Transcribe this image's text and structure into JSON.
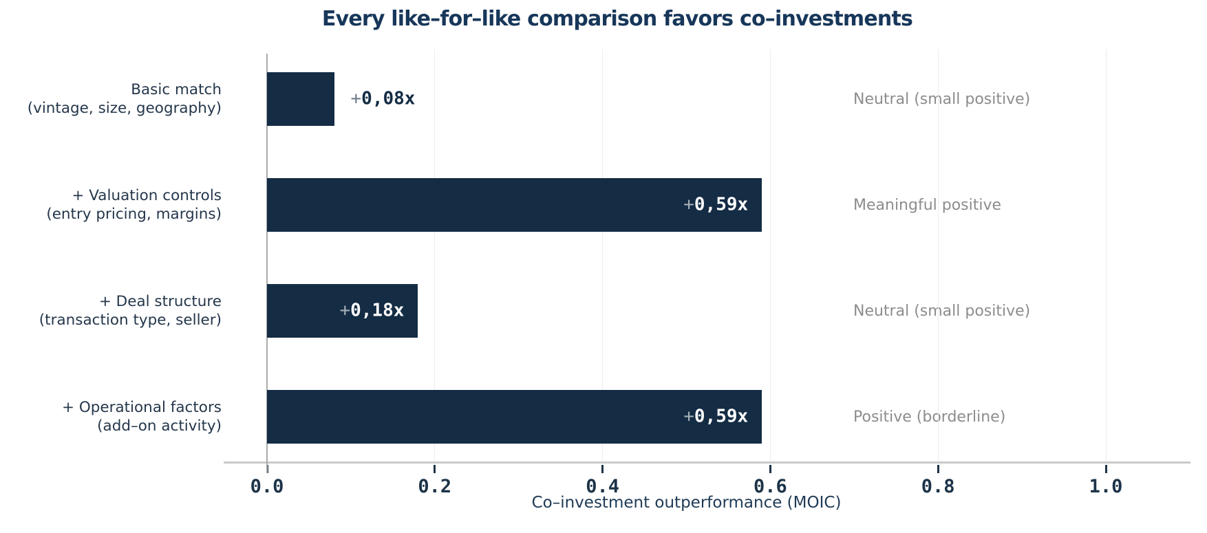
{
  "title": "Every like–for–like comparison favors co–investments",
  "chart_data": {
    "type": "bar",
    "orientation": "horizontal",
    "title": "Every like–for–like comparison favors co–investments",
    "xlabel": "Co–investment outperformance (MOIC)",
    "xlim": [
      0.0,
      1.1
    ],
    "xticks": [
      0.0,
      0.2,
      0.4,
      0.6,
      0.8,
      1.0
    ],
    "xtick_labels": [
      "0.0",
      "0.2",
      "0.4",
      "0.6",
      "0.8",
      "1.0"
    ],
    "grid": "vertical gridlines at xticks, drawn behind bars",
    "legend": "none",
    "bar_color": "#142C44",
    "categories": [
      {
        "line1": "Basic match",
        "line2": "(vintage, size, geography)"
      },
      {
        "line1": "+ Valuation controls",
        "line2": "(entry pricing, margins)"
      },
      {
        "line1": "+ Deal structure",
        "line2": "(transaction type, seller)"
      },
      {
        "line1": "+ Operational factors",
        "line2": "(add–on activity)"
      }
    ],
    "values": [
      0.08,
      0.59,
      0.18,
      0.59
    ],
    "value_labels": [
      "+0,08x",
      "+0,59x",
      "+0,18x",
      "+0,59x"
    ],
    "value_plus_sign": "+",
    "value_numbers": [
      "0,08x",
      "0,59x",
      "0,18x",
      "0,59x"
    ],
    "annotations": [
      "Neutral (small positive)",
      "Meaningful positive",
      "Neutral (small positive)",
      "Positive (borderline)"
    ]
  },
  "colors": {
    "bar": "#142C44",
    "title_text": "#17375A",
    "category_text": "#25374B",
    "annotation_text": "#8C8C8C",
    "tick_text": "#1C3348",
    "axis_line": "#C9C9C9",
    "zero_line": "#AAAAAA",
    "gridline": "#ECECEC",
    "value_inside_text": "#FFFFFF",
    "background": "#FFFFFF"
  }
}
